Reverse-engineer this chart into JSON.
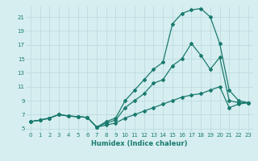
{
  "xlabel": "Humidex (Indice chaleur)",
  "bg_color": "#d6eef0",
  "grid_color": "#b8d8dc",
  "line_color": "#1a7a6e",
  "xlim": [
    -0.5,
    23.5
  ],
  "ylim": [
    4.5,
    22.5
  ],
  "xticks": [
    0,
    1,
    2,
    3,
    4,
    5,
    6,
    7,
    8,
    9,
    10,
    11,
    12,
    13,
    14,
    15,
    16,
    17,
    18,
    19,
    20,
    21,
    22,
    23
  ],
  "yticks": [
    5,
    7,
    9,
    11,
    13,
    15,
    17,
    19,
    21
  ],
  "line_top_x": [
    0,
    1,
    2,
    3,
    4,
    5,
    6,
    7,
    8,
    9,
    10,
    11,
    12,
    13,
    14,
    15,
    16,
    17,
    18,
    19,
    20,
    21,
    22,
    23
  ],
  "line_top_y": [
    6.0,
    6.2,
    6.5,
    7.0,
    6.8,
    6.7,
    6.6,
    5.2,
    6.0,
    6.5,
    9.0,
    10.5,
    12.0,
    13.5,
    14.5,
    20.0,
    21.5,
    22.0,
    22.2,
    21.0,
    17.2,
    10.5,
    9.0,
    8.7
  ],
  "line_mid_x": [
    0,
    1,
    2,
    3,
    4,
    5,
    6,
    7,
    8,
    9,
    10,
    11,
    12,
    13,
    14,
    15,
    16,
    17,
    18,
    19,
    20,
    21,
    22,
    23
  ],
  "line_mid_y": [
    6.0,
    6.2,
    6.5,
    7.0,
    6.8,
    6.7,
    6.6,
    5.2,
    5.8,
    6.2,
    8.0,
    9.0,
    10.0,
    11.5,
    12.0,
    14.0,
    15.0,
    17.2,
    15.5,
    13.5,
    15.2,
    9.0,
    8.7,
    8.7
  ],
  "line_bot_x": [
    0,
    1,
    2,
    3,
    4,
    5,
    6,
    7,
    8,
    9,
    10,
    11,
    12,
    13,
    14,
    15,
    16,
    17,
    18,
    19,
    20,
    21,
    22,
    23
  ],
  "line_bot_y": [
    6.0,
    6.2,
    6.5,
    7.0,
    6.8,
    6.7,
    6.6,
    5.2,
    5.5,
    5.8,
    6.5,
    7.0,
    7.5,
    8.0,
    8.5,
    9.0,
    9.5,
    9.8,
    10.0,
    10.5,
    11.0,
    8.0,
    8.5,
    8.7
  ]
}
